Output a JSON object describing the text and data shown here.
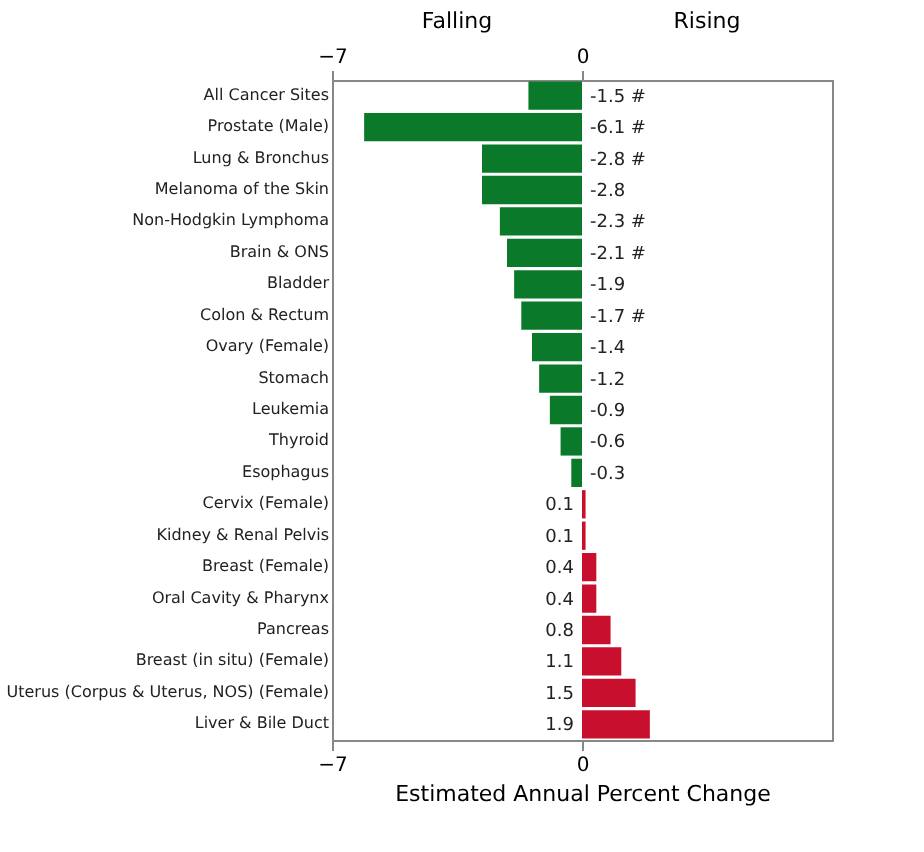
{
  "chart_data": {
    "type": "bar",
    "orientation": "horizontal",
    "categories": [
      "All Cancer Sites",
      "Prostate (Male)",
      "Lung & Bronchus",
      "Melanoma of the Skin",
      "Non-Hodgkin Lymphoma",
      "Brain & ONS",
      "Bladder",
      "Colon & Rectum",
      "Ovary (Female)",
      "Stomach",
      "Leukemia",
      "Thyroid",
      "Esophagus",
      "Cervix (Female)",
      "Kidney & Renal Pelvis",
      "Breast (Female)",
      "Oral Cavity & Pharynx",
      "Pancreas",
      "Breast (in situ) (Female)",
      "Uterus (Corpus & Uterus, NOS) (Female)",
      "Liver & Bile Duct"
    ],
    "values": [
      -1.5,
      -6.1,
      -2.8,
      -2.8,
      -2.3,
      -2.1,
      -1.9,
      -1.7,
      -1.4,
      -1.2,
      -0.9,
      -0.6,
      -0.3,
      0.1,
      0.1,
      0.4,
      0.4,
      0.8,
      1.1,
      1.5,
      1.9
    ],
    "value_labels": [
      "-1.5 #",
      "-6.1 #",
      "-2.8 #",
      "-2.8",
      "-2.3 #",
      "-2.1 #",
      "-1.9",
      "-1.7 #",
      "-1.4",
      "-1.2",
      "-0.9",
      "-0.6",
      "-0.3",
      "0.1",
      "0.1",
      "0.4",
      "0.4",
      "0.8",
      "1.1",
      "1.5",
      "1.9"
    ],
    "colors": [
      "#0a7a2a",
      "#0a7a2a",
      "#0a7a2a",
      "#0a7a2a",
      "#0a7a2a",
      "#0a7a2a",
      "#0a7a2a",
      "#0a7a2a",
      "#0a7a2a",
      "#0a7a2a",
      "#0a7a2a",
      "#0a7a2a",
      "#0a7a2a",
      "#c8102e",
      "#c8102e",
      "#c8102e",
      "#c8102e",
      "#c8102e",
      "#c8102e",
      "#c8102e",
      "#c8102e"
    ],
    "xlim": [
      -7,
      7
    ],
    "xticks": [
      -7,
      0
    ],
    "x2lim": [
      -7,
      7
    ],
    "x2ticks": [
      -7,
      0
    ],
    "xlabel": "Estimated Annual Percent Change",
    "annotations": [
      "Falling",
      "Rising"
    ],
    "grid": false
  }
}
